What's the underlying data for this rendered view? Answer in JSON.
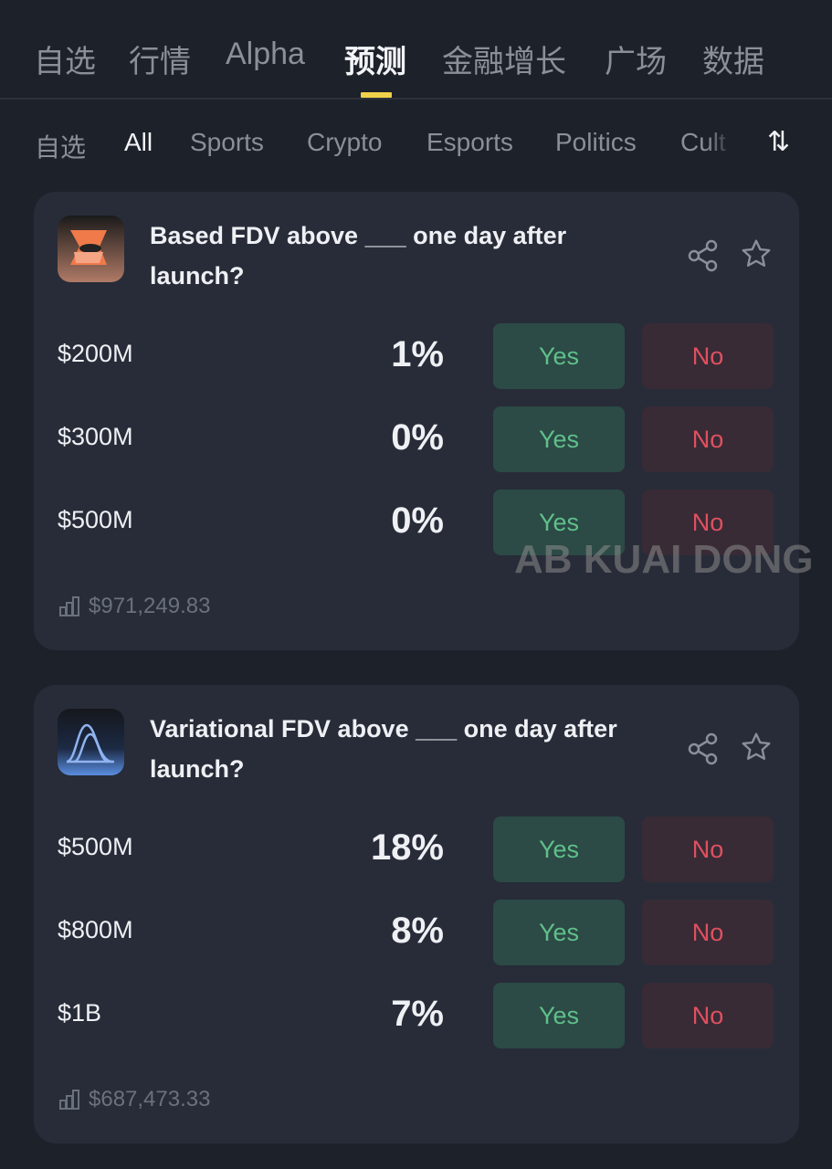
{
  "top_tabs": [
    {
      "label": "自选"
    },
    {
      "label": "行情"
    },
    {
      "label": "Alpha"
    },
    {
      "label": "预测",
      "active": true
    },
    {
      "label": "金融增长"
    },
    {
      "label": "广场"
    },
    {
      "label": "数据"
    }
  ],
  "sub_tabs": [
    {
      "label": "自选"
    },
    {
      "label": "All",
      "active": true
    },
    {
      "label": "Sports"
    },
    {
      "label": "Crypto"
    },
    {
      "label": "Esports"
    },
    {
      "label": "Politics"
    },
    {
      "label": "Cult"
    }
  ],
  "sort_icon": "sort-arrows-icon",
  "colors": {
    "accent": "#f0d24a",
    "yes": "#5fc08a",
    "no": "#e0505f",
    "background": "#1d212a",
    "card": "#272c38"
  },
  "markets": [
    {
      "title": "Based FDV above ___ one day after launch?",
      "volume": "$971,249.83",
      "outcomes": [
        {
          "label": "$200M",
          "pct": "1%",
          "yes": "Yes",
          "no": "No"
        },
        {
          "label": "$300M",
          "pct": "0%",
          "yes": "Yes",
          "no": "No"
        },
        {
          "label": "$500M",
          "pct": "0%",
          "yes": "Yes",
          "no": "No"
        }
      ]
    },
    {
      "title": "Variational FDV above ___ one day after launch?",
      "volume": "$687,473.33",
      "outcomes": [
        {
          "label": "$500M",
          "pct": "18%",
          "yes": "Yes",
          "no": "No"
        },
        {
          "label": "$800M",
          "pct": "8%",
          "yes": "Yes",
          "no": "No"
        },
        {
          "label": "$1B",
          "pct": "7%",
          "yes": "Yes",
          "no": "No"
        }
      ]
    }
  ],
  "watermark": "AB KUAI DONG"
}
